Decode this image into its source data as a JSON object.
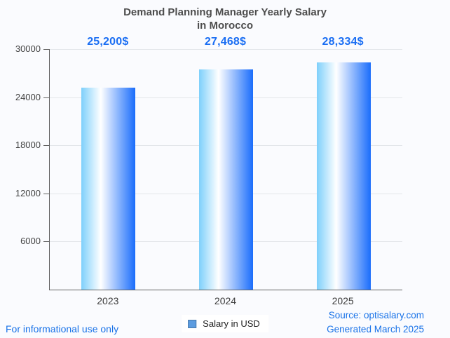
{
  "page": {
    "background": "#fafbfe",
    "footer_left": "For informational use only",
    "footer_right_line1": "Source: optisalary.com",
    "footer_right_line2": "Generated March 2025",
    "footer_color": "#1a73e8"
  },
  "header": {
    "title_lines": [
      "Demand Planning Manager Yearly Salary",
      "in Morocco"
    ],
    "title_color": "#4d4d4d"
  },
  "legend": {
    "label": "Salary in USD",
    "swatch_color": "#5c9ce0",
    "swatch_border": "#4778ab"
  },
  "chart_data": {
    "type": "bar",
    "title": "Demand Planning Manager Yearly Salary in Morocco",
    "categories": [
      "2023",
      "2024",
      "2025"
    ],
    "series": [
      {
        "name": "Salary in USD",
        "values": [
          25200,
          27468,
          28334
        ]
      }
    ],
    "value_labels": [
      "25,200$",
      "27,468$",
      "28,334$"
    ],
    "ylim": [
      0,
      30000
    ],
    "yticks": [
      6000,
      12000,
      18000,
      24000,
      30000
    ],
    "grid": true,
    "legend_position": "bottom",
    "xlabel": "",
    "ylabel": "",
    "colors": {
      "bar_gradient": [
        "#7ed0fb",
        "#ffffff",
        "#1a6dfb"
      ],
      "value_label": "#1a6ef3",
      "gridline": "#e3e6ea",
      "axis": "#616161",
      "x_label": "#3c3c3c",
      "y_tick_label": "#444444"
    }
  }
}
